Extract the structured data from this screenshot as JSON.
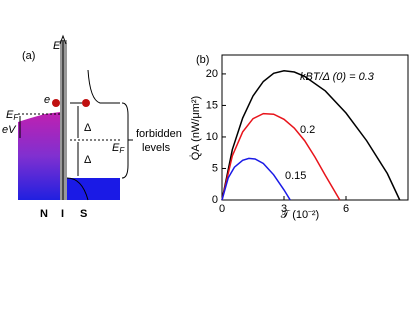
{
  "panel_a": {
    "label": "(a)",
    "energy_axis": "E",
    "electron": "e",
    "fermi_n": "E",
    "fermi_n_sub": "F",
    "bias": "eV",
    "gap_upper": "Δ",
    "gap_lower": "Δ",
    "fermi_s": "E",
    "fermi_s_sub": "F",
    "bracket_line1": "forbidden",
    "bracket_line2": "levels",
    "region_n": "N",
    "region_i": "I",
    "region_s": "S"
  },
  "chart_data": {
    "type": "line",
    "panel_label": "(b)",
    "y_label": "Q̇A (nW/μm²)",
    "x_label": "𝒯 (10⁻²)",
    "xlim": [
      0,
      9
    ],
    "ylim": [
      0,
      23
    ],
    "xticks": [
      0,
      3,
      6
    ],
    "yticks": [
      0,
      5,
      10,
      15,
      20
    ],
    "annotations": [
      "kBT/Δ (0) = 0.3",
      "0.2",
      "0.15"
    ],
    "series": [
      {
        "color": "#000000",
        "x": [
          0,
          0.5,
          1,
          1.5,
          2,
          2.5,
          3,
          3.5,
          4,
          5,
          6,
          7,
          8,
          8.6
        ],
        "values": [
          0,
          8,
          13,
          16.5,
          18.8,
          20.1,
          20.5,
          20.3,
          19.6,
          17.3,
          13.8,
          9.4,
          4.2,
          0
        ]
      },
      {
        "color": "#e8141b",
        "x": [
          0,
          0.5,
          1,
          1.5,
          2,
          2.5,
          3,
          3.5,
          4,
          4.5,
          5,
          5.7
        ],
        "values": [
          0,
          7,
          10.8,
          12.9,
          13.7,
          13.6,
          12.8,
          11.4,
          9.4,
          6.8,
          3.9,
          0
        ]
      },
      {
        "color": "#1a1ae6",
        "x": [
          0,
          0.3,
          0.6,
          1,
          1.3,
          1.6,
          2,
          2.5,
          3,
          3.3
        ],
        "values": [
          0,
          3.5,
          5.2,
          6.3,
          6.6,
          6.5,
          5.8,
          4,
          1.6,
          0
        ]
      }
    ]
  }
}
